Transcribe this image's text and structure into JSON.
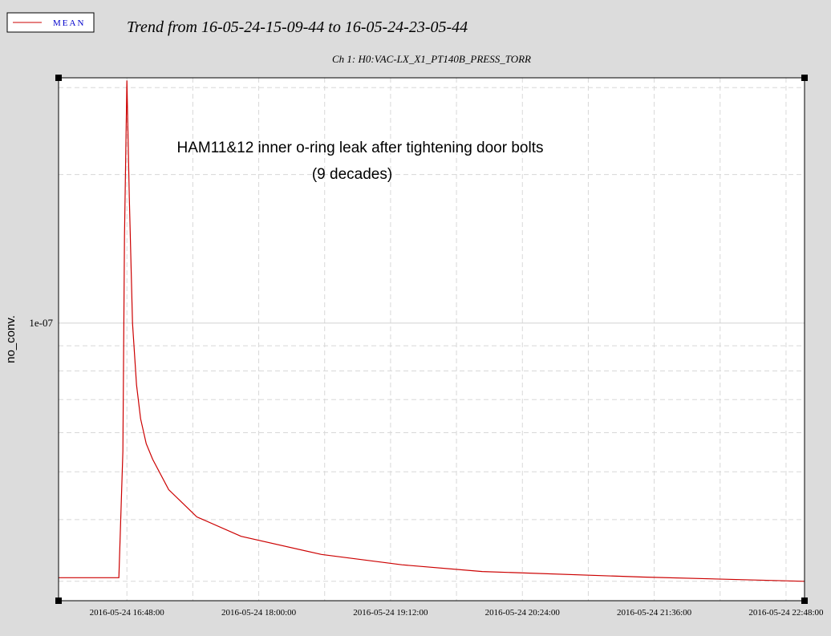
{
  "chart_data": {
    "type": "line",
    "title": "Trend from 16-05-24-15-09-44 to 16-05-24-23-05-44",
    "subtitle": "Ch 1: H0:VAC-LX_X1_PT140B_PRESS_TORR",
    "y_label": "no_conv.",
    "annotations": [
      "HAM11&12 inner o-ring leak after tightening door bolts",
      "(9 decades)"
    ],
    "log_y": true,
    "grid": true,
    "legend": "top-left",
    "x": [
      "2016-05-24 16:10:40",
      "2016-05-24 16:43:36",
      "2016-05-24 16:45:48",
      "2016-05-24 16:46:41",
      "2016-05-24 16:48:00",
      "2016-05-24 16:49:19",
      "2016-05-24 16:51:04",
      "2016-05-24 16:53:16",
      "2016-05-24 16:55:28",
      "2016-05-24 16:58:32",
      "2016-05-24 17:02:03",
      "2016-05-24 17:10:50",
      "2016-05-24 17:26:12",
      "2016-05-24 17:50:21",
      "2016-05-24 18:34:14",
      "2016-05-24 19:18:08",
      "2016-05-24 20:02:03",
      "2016-05-24 21:29:52",
      "2016-05-24 22:58:00"
    ],
    "series": [
      {
        "name": "MEAN",
        "color": "#cc0000",
        "values": [
          3.05e-08,
          3.05e-08,
          5.5e-08,
          1.5e-07,
          3.1e-07,
          1.8e-07,
          1e-07,
          7.5e-08,
          6.4e-08,
          5.7e-08,
          5.3e-08,
          4.6e-08,
          4.05e-08,
          3.7e-08,
          3.4e-08,
          3.24e-08,
          3.14e-08,
          3.06e-08,
          3e-08
        ]
      }
    ],
    "xlim": [
      "2016-05-24 16:10:40",
      "2016-05-24 22:58:06"
    ],
    "xticks": [
      {
        "value": "2016-05-24 16:48:00",
        "label": "2016-05-24 16:48:00"
      },
      {
        "value": "2016-05-24 18:00:00",
        "label": "2016-05-24 18:00:00"
      },
      {
        "value": "2016-05-24 19:12:00",
        "label": "2016-05-24 19:12:00"
      },
      {
        "value": "2016-05-24 20:24:00",
        "label": "2016-05-24 20:24:00"
      },
      {
        "value": "2016-05-24 21:36:00",
        "label": "2016-05-24 21:36:00"
      },
      {
        "value": "2016-05-24 22:48:00",
        "label": "2016-05-24 22:48:00"
      }
    ],
    "minor_xticks": [
      "2016-05-24 17:24:00",
      "2016-05-24 18:36:00",
      "2016-05-24 19:48:00",
      "2016-05-24 21:00:00",
      "2016-05-24 22:12:00"
    ],
    "ylim": [
      2.74e-08,
      3.14e-07
    ],
    "yticks": [
      {
        "value": 1e-07,
        "label": "1e-07"
      }
    ],
    "minor_yticks": [
      3e-08,
      4e-08,
      5e-08,
      6e-08,
      7e-08,
      8e-08,
      9e-08,
      2e-07,
      3e-07
    ]
  }
}
